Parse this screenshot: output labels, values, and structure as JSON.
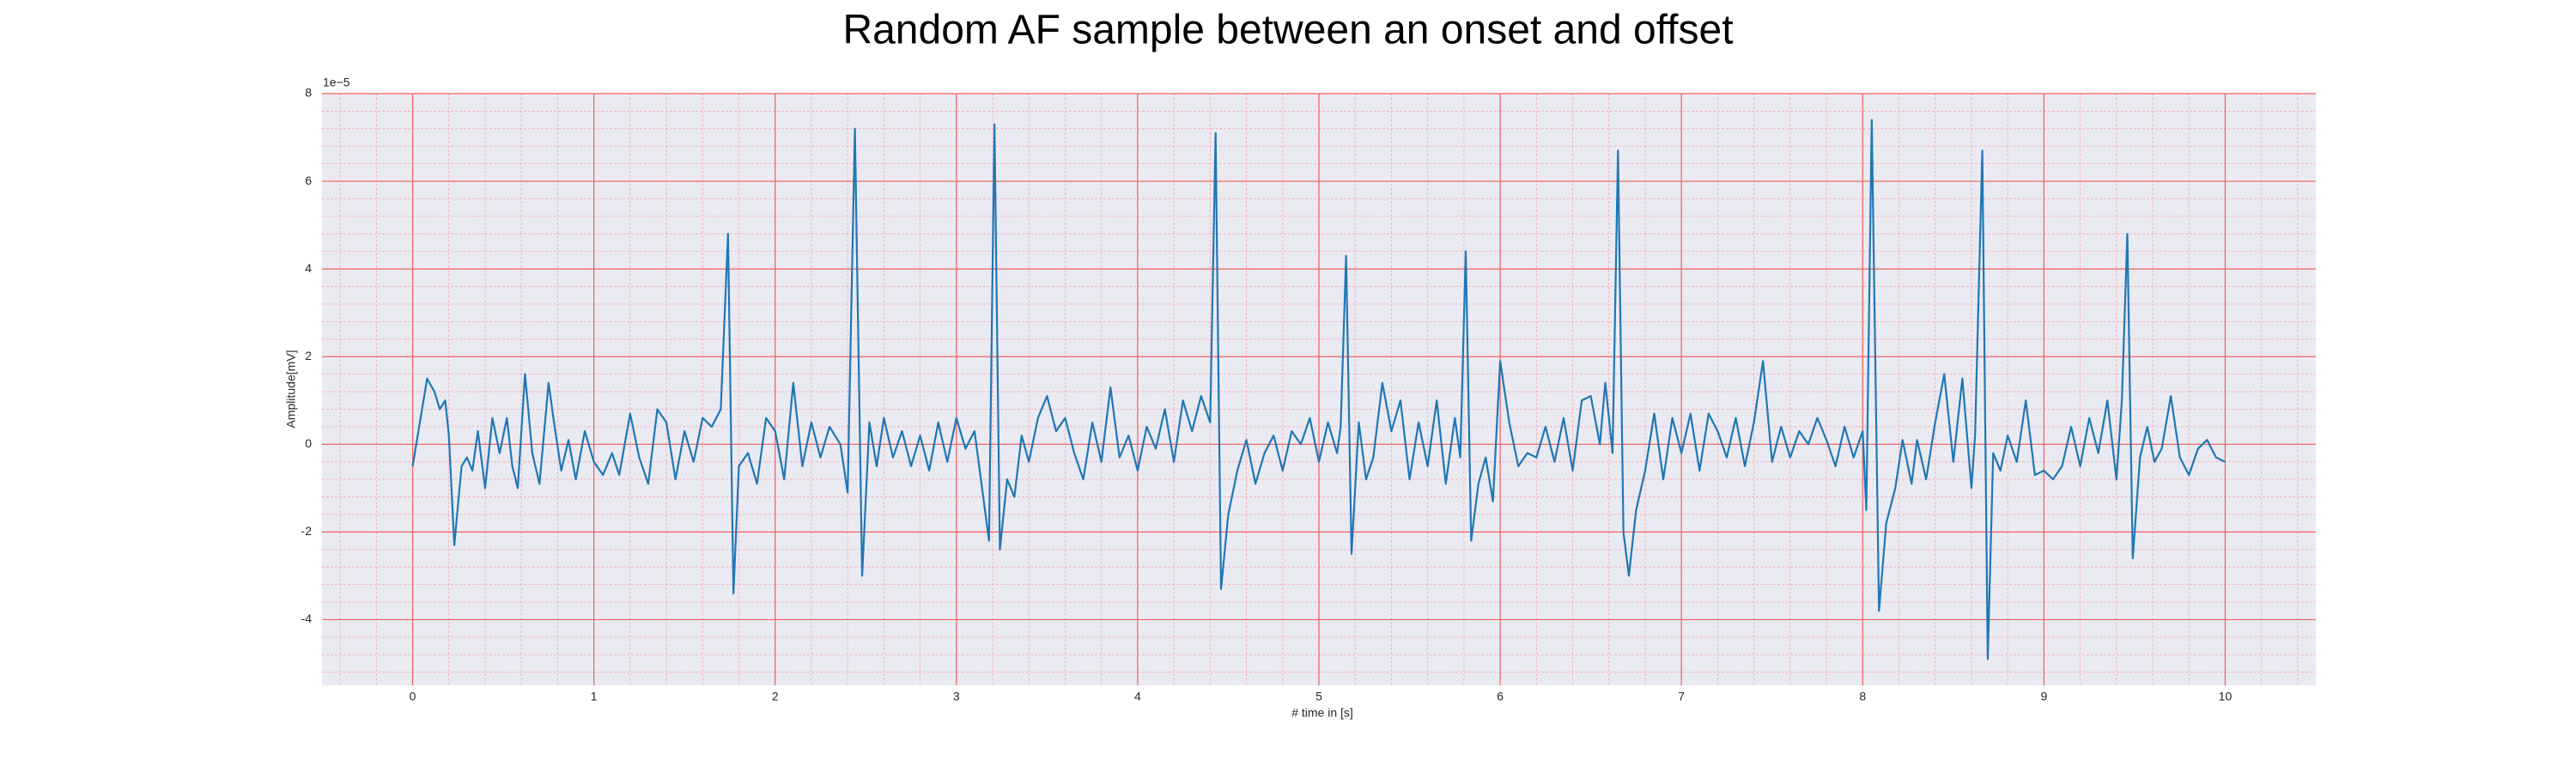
{
  "chart_data": {
    "type": "line",
    "title": "Random AF sample between an onset and offset",
    "x_label": "# time in [s]",
    "y_label": "Amplitude[mV]",
    "y_offset_label": "1e−5",
    "color": "#1f77b4",
    "grid": true,
    "minor_grid": true,
    "xlim": [
      -0.5,
      10.5
    ],
    "ylim": [
      -5.5,
      8
    ],
    "xticks": [
      0,
      1,
      2,
      3,
      4,
      5,
      6,
      7,
      8,
      9,
      10
    ],
    "yticks": [
      -4,
      -2,
      0,
      2,
      4,
      6,
      8
    ],
    "x": [
      0.0,
      0.04,
      0.08,
      0.12,
      0.15,
      0.18,
      0.2,
      0.23,
      0.27,
      0.3,
      0.33,
      0.36,
      0.4,
      0.44,
      0.48,
      0.52,
      0.55,
      0.58,
      0.62,
      0.66,
      0.7,
      0.75,
      0.78,
      0.82,
      0.86,
      0.9,
      0.95,
      1.0,
      1.05,
      1.1,
      1.14,
      1.2,
      1.25,
      1.3,
      1.35,
      1.4,
      1.45,
      1.5,
      1.55,
      1.6,
      1.65,
      1.7,
      1.74,
      1.77,
      1.8,
      1.85,
      1.9,
      1.95,
      2.0,
      2.05,
      2.1,
      2.15,
      2.2,
      2.25,
      2.3,
      2.36,
      2.4,
      2.44,
      2.48,
      2.52,
      2.56,
      2.6,
      2.65,
      2.7,
      2.75,
      2.8,
      2.85,
      2.9,
      2.95,
      3.0,
      3.05,
      3.1,
      3.18,
      3.21,
      3.24,
      3.28,
      3.32,
      3.36,
      3.4,
      3.45,
      3.5,
      3.55,
      3.6,
      3.65,
      3.7,
      3.75,
      3.8,
      3.85,
      3.9,
      3.95,
      4.0,
      4.05,
      4.1,
      4.15,
      4.2,
      4.25,
      4.3,
      4.35,
      4.4,
      4.43,
      4.46,
      4.5,
      4.55,
      4.6,
      4.65,
      4.7,
      4.75,
      4.8,
      4.85,
      4.9,
      4.95,
      5.0,
      5.05,
      5.1,
      5.12,
      5.15,
      5.18,
      5.22,
      5.26,
      5.3,
      5.35,
      5.4,
      5.45,
      5.5,
      5.55,
      5.6,
      5.65,
      5.7,
      5.75,
      5.78,
      5.81,
      5.84,
      5.88,
      5.92,
      5.96,
      6.0,
      6.05,
      6.1,
      6.15,
      6.2,
      6.25,
      6.3,
      6.35,
      6.4,
      6.45,
      6.5,
      6.55,
      6.58,
      6.62,
      6.65,
      6.68,
      6.71,
      6.75,
      6.8,
      6.85,
      6.9,
      6.95,
      7.0,
      7.05,
      7.1,
      7.15,
      7.2,
      7.25,
      7.3,
      7.35,
      7.4,
      7.45,
      7.5,
      7.55,
      7.6,
      7.65,
      7.7,
      7.75,
      7.8,
      7.85,
      7.9,
      7.95,
      8.0,
      8.02,
      8.05,
      8.09,
      8.13,
      8.18,
      8.22,
      8.27,
      8.3,
      8.35,
      8.4,
      8.45,
      8.5,
      8.55,
      8.6,
      8.62,
      8.66,
      8.69,
      8.72,
      8.76,
      8.8,
      8.85,
      8.9,
      8.95,
      9.0,
      9.05,
      9.1,
      9.15,
      9.2,
      9.25,
      9.3,
      9.35,
      9.4,
      9.43,
      9.46,
      9.49,
      9.53,
      9.57,
      9.61,
      9.65,
      9.7,
      9.75,
      9.8,
      9.85,
      9.9,
      9.95,
      10.0
    ],
    "values": [
      -0.5,
      0.5,
      1.5,
      1.2,
      0.8,
      1.0,
      0.2,
      -2.3,
      -0.5,
      -0.3,
      -0.6,
      0.3,
      -1.0,
      0.6,
      -0.2,
      0.6,
      -0.5,
      -1.0,
      1.6,
      -0.2,
      -0.9,
      1.4,
      0.5,
      -0.6,
      0.1,
      -0.8,
      0.3,
      -0.4,
      -0.7,
      -0.2,
      -0.7,
      0.7,
      -0.3,
      -0.9,
      0.8,
      0.5,
      -0.8,
      0.3,
      -0.4,
      0.6,
      0.4,
      0.8,
      4.8,
      -3.4,
      -0.5,
      -0.2,
      -0.9,
      0.6,
      0.3,
      -0.8,
      1.4,
      -0.5,
      0.5,
      -0.3,
      0.4,
      0.0,
      -1.1,
      7.2,
      -3.0,
      0.5,
      -0.5,
      0.6,
      -0.3,
      0.3,
      -0.5,
      0.2,
      -0.6,
      0.5,
      -0.4,
      0.6,
      -0.1,
      0.3,
      -2.2,
      7.3,
      -2.4,
      -0.8,
      -1.2,
      0.2,
      -0.4,
      0.6,
      1.1,
      0.3,
      0.6,
      -0.2,
      -0.8,
      0.5,
      -0.4,
      1.3,
      -0.3,
      0.2,
      -0.6,
      0.4,
      -0.1,
      0.8,
      -0.4,
      1.0,
      0.3,
      1.1,
      0.5,
      7.1,
      -3.3,
      -1.6,
      -0.6,
      0.1,
      -0.9,
      -0.2,
      0.2,
      -0.6,
      0.3,
      0.0,
      0.6,
      -0.4,
      0.5,
      -0.2,
      0.4,
      4.3,
      -2.5,
      0.5,
      -0.8,
      -0.3,
      1.4,
      0.3,
      1.0,
      -0.8,
      0.5,
      -0.5,
      1.0,
      -0.9,
      0.6,
      -0.3,
      4.4,
      -2.2,
      -0.9,
      -0.3,
      -1.3,
      1.9,
      0.5,
      -0.5,
      -0.2,
      -0.3,
      0.4,
      -0.4,
      0.6,
      -0.6,
      1.0,
      1.1,
      0.0,
      1.4,
      -0.2,
      6.7,
      -2.0,
      -3.0,
      -1.5,
      -0.6,
      0.7,
      -0.8,
      0.6,
      -0.2,
      0.7,
      -0.6,
      0.7,
      0.3,
      -0.3,
      0.6,
      -0.5,
      0.5,
      1.9,
      -0.4,
      0.4,
      -0.3,
      0.3,
      0.0,
      0.6,
      0.1,
      -0.5,
      0.4,
      -0.3,
      0.3,
      -1.5,
      7.4,
      -3.8,
      -1.8,
      -1.0,
      0.1,
      -0.9,
      0.1,
      -0.8,
      0.5,
      1.6,
      -0.4,
      1.5,
      -1.0,
      0.2,
      6.7,
      -4.9,
      -0.2,
      -0.6,
      0.2,
      -0.4,
      1.0,
      -0.7,
      -0.6,
      -0.8,
      -0.5,
      0.4,
      -0.5,
      0.6,
      -0.2,
      1.0,
      -0.8,
      1.0,
      4.8,
      -2.6,
      -0.3,
      0.4,
      -0.4,
      -0.1,
      1.1,
      -0.3,
      -0.7,
      -0.1,
      0.1,
      -0.3,
      -0.4
    ]
  }
}
